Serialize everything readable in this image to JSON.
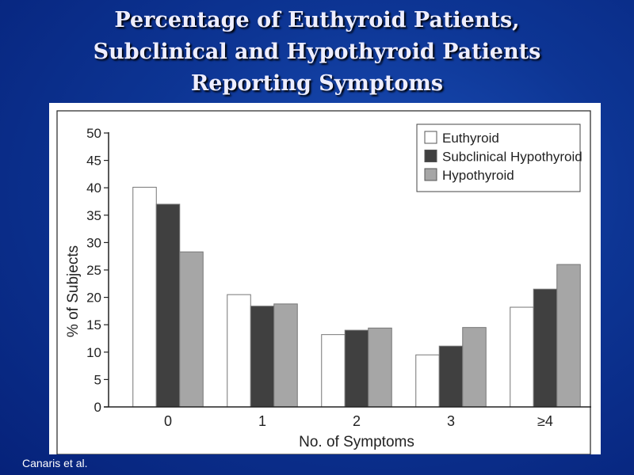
{
  "slide": {
    "title_lines": [
      "Percentage of Euthyroid Patients,",
      "Subclinical and Hypothyroid Patients",
      "Reporting Symptoms"
    ],
    "citation": "Canaris et al."
  },
  "chart_data": {
    "type": "bar",
    "title": "",
    "xlabel": "No. of Symptoms",
    "ylabel": "% of Subjects",
    "categories": [
      "0",
      "1",
      "2",
      "3",
      "≥4"
    ],
    "ylim": [
      0,
      50
    ],
    "yticks": [
      "0",
      "5",
      "10",
      "15",
      "20",
      "25",
      "30",
      "35",
      "40",
      "45",
      "50"
    ],
    "legend_position": "top-right",
    "series": [
      {
        "name": "Euthyroid",
        "color": "#ffffff",
        "values": [
          40.1,
          20.5,
          13.2,
          9.5,
          18.2
        ]
      },
      {
        "name": "Subclinical Hypothyroid",
        "color": "#404040",
        "values": [
          37.0,
          18.4,
          14.0,
          11.1,
          21.5
        ]
      },
      {
        "name": "Hypothyroid",
        "color": "#a6a6a6",
        "values": [
          28.3,
          18.8,
          14.4,
          14.5,
          26.0
        ]
      }
    ]
  }
}
